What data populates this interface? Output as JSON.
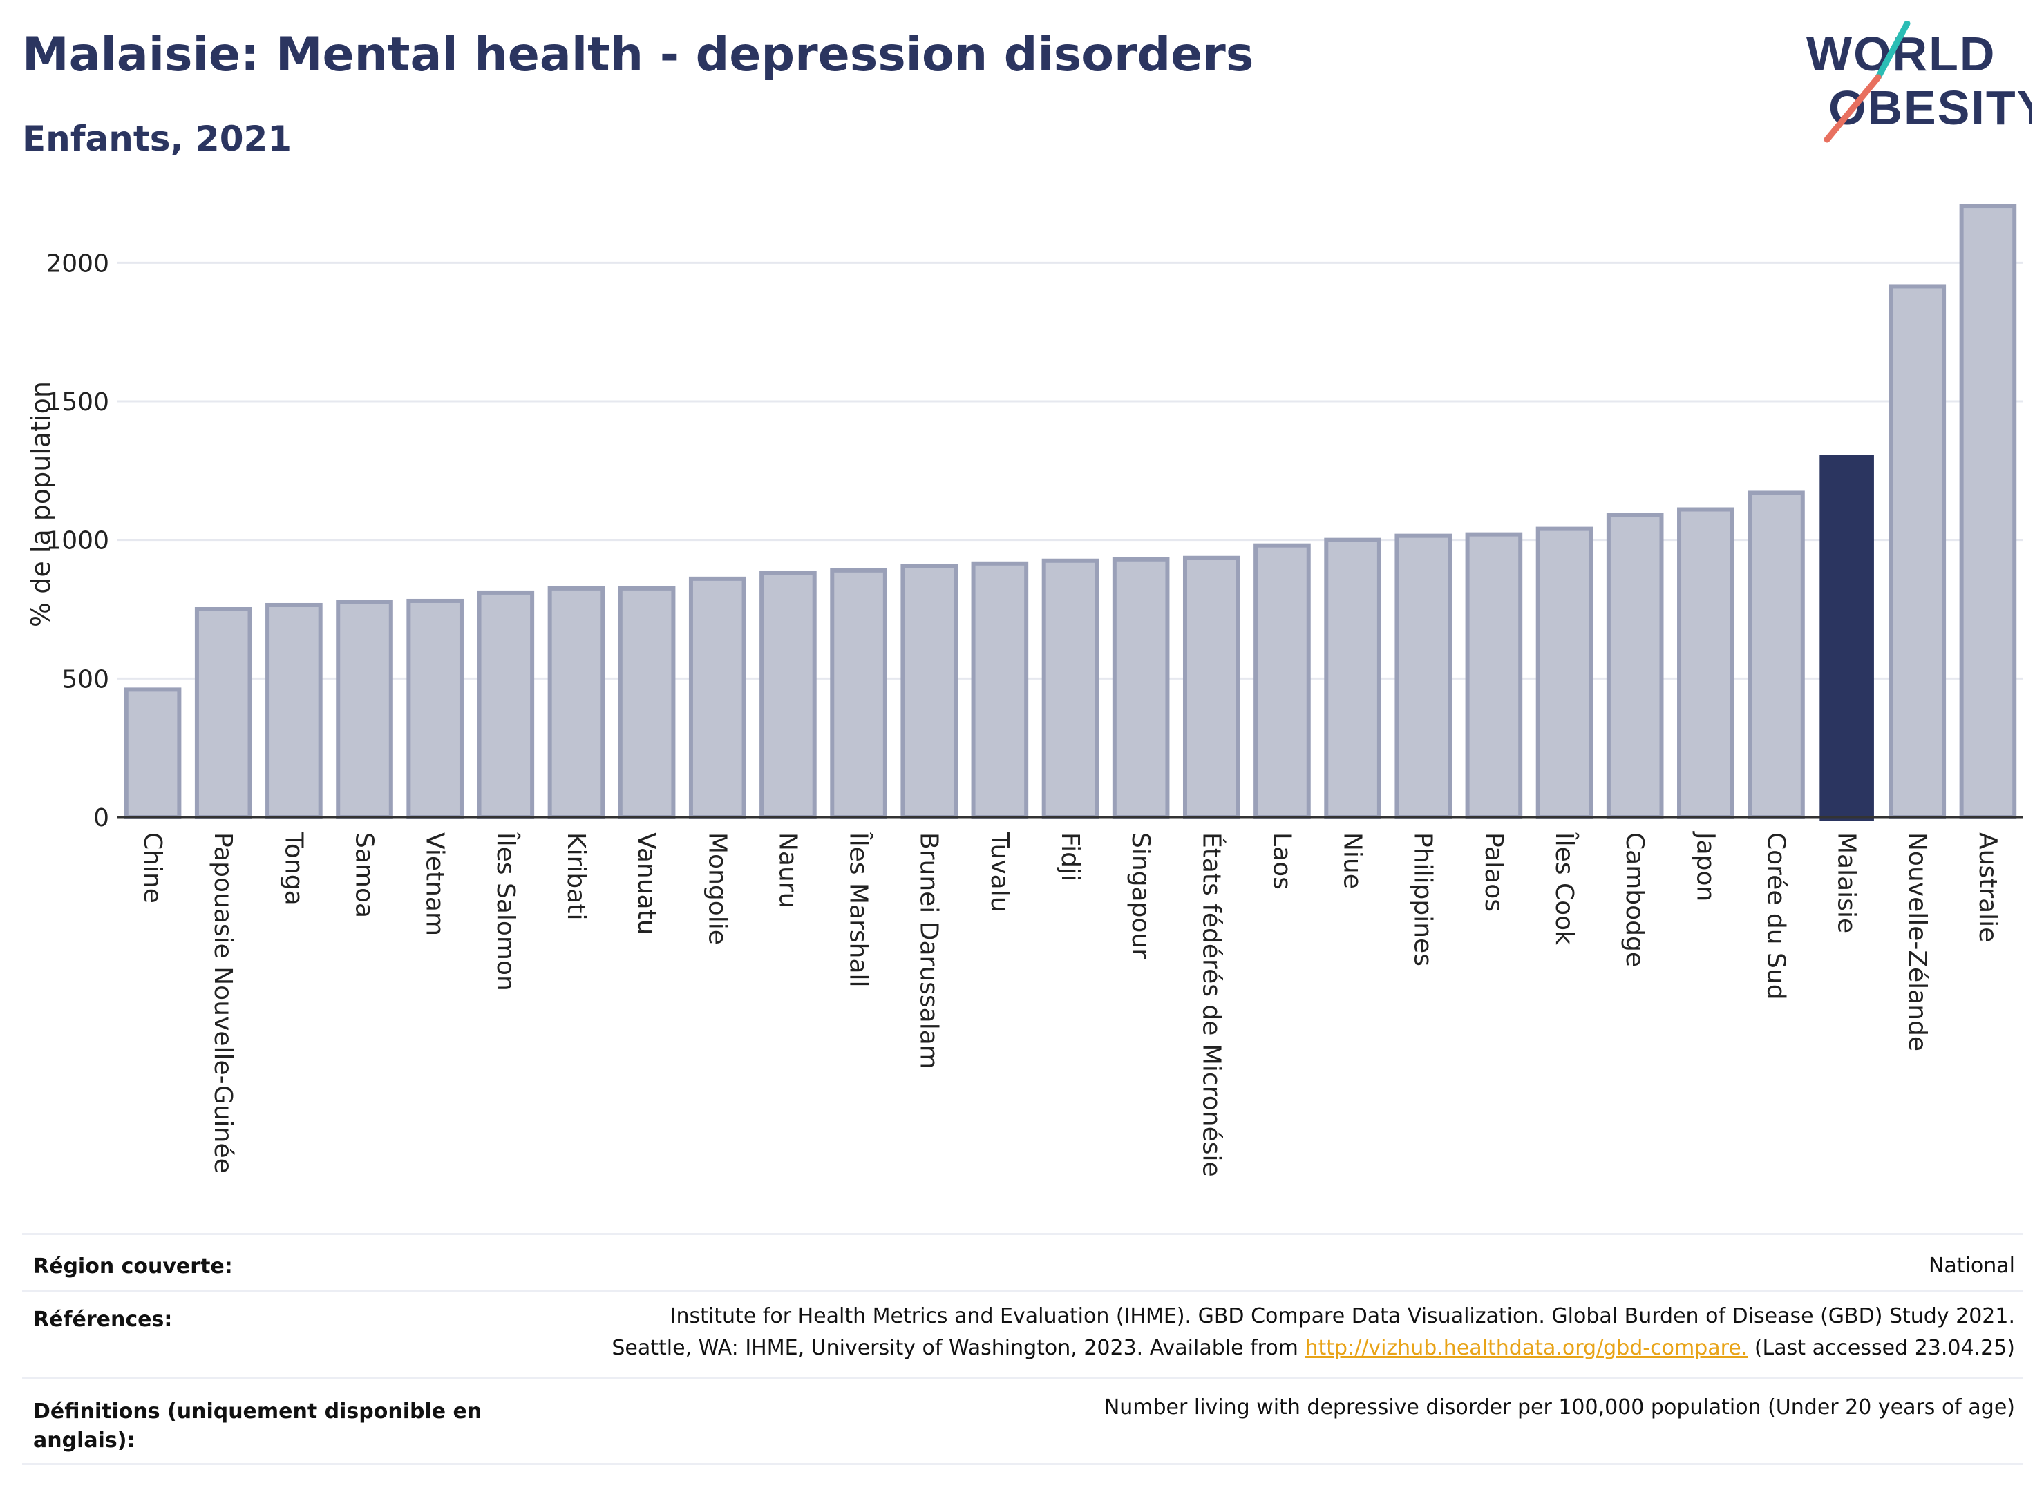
{
  "header": {
    "title": "Malaisie: Mental health - depression disorders",
    "subtitle": "Enfants, 2021"
  },
  "logo": {
    "line1": "WORLD",
    "line2": "OBESITY"
  },
  "chart_data": {
    "type": "bar",
    "ylabel": "% de la population",
    "xlabel": "",
    "ylim": [
      0,
      2250
    ],
    "yticks": [
      0,
      500,
      1000,
      1500,
      2000
    ],
    "grid": true,
    "categories": [
      "Chine",
      "Papouasie Nouvelle-Guinée",
      "Tonga",
      "Samoa",
      "Vietnam",
      "Îles Salomon",
      "Kiribati",
      "Vanuatu",
      "Mongolie",
      "Nauru",
      "Îles Marshall",
      "Brunei Darussalam",
      "Tuvalu",
      "Fidji",
      "Singapour",
      "États fédérés de Micronésie",
      "Laos",
      "Niue",
      "Philippines",
      "Palaos",
      "Îles Cook",
      "Cambodge",
      "Japon",
      "Corée du Sud",
      "Malaisie",
      "Nouvelle-Zélande",
      "Australie"
    ],
    "values": [
      460,
      750,
      765,
      775,
      780,
      810,
      825,
      825,
      860,
      880,
      890,
      905,
      915,
      925,
      930,
      935,
      980,
      1000,
      1015,
      1020,
      1040,
      1090,
      1110,
      1170,
      1305,
      1915,
      2205
    ],
    "highlight": "Malaisie",
    "colors": {
      "bar": "#bfc3d1",
      "bar_border": "#9aa0b8",
      "highlight": "#2b3560",
      "grid": "#e6e8ef",
      "axis": "#333333"
    }
  },
  "info": {
    "region_label": "Région couverte:",
    "region_value": "National",
    "references_label": "Références:",
    "references_line1": "Institute for Health Metrics and Evaluation (IHME). GBD Compare Data Visualization. Global Burden of Disease (GBD) Study 2021.",
    "references_line2_pre": "Seattle, WA: IHME, University of Washington, 2023. Available from ",
    "references_link": "http://vizhub.healthdata.org/gbd-compare.",
    "references_line2_post": " (Last accessed 23.04.25)",
    "definitions_label_1": "Définitions (uniquement disponible en",
    "definitions_label_2": "anglais):",
    "definitions_value": "Number living with depressive disorder per 100,000 population (Under 20 years of age)"
  }
}
